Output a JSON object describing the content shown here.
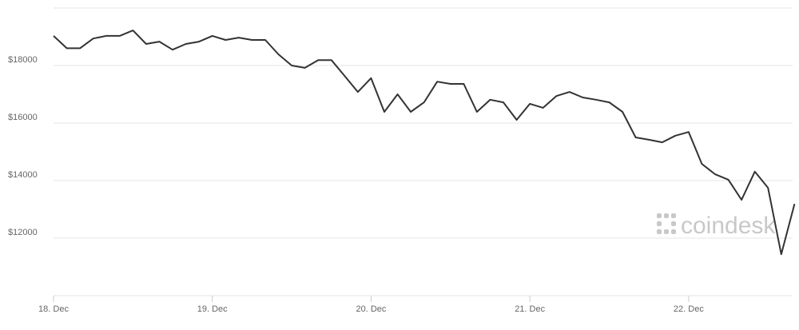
{
  "chart_data": {
    "type": "line",
    "categories": [
      "18. Dec",
      null,
      null,
      null,
      null,
      null,
      null,
      null,
      null,
      null,
      null,
      null,
      "19. Dec",
      null,
      null,
      null,
      null,
      null,
      null,
      null,
      null,
      null,
      null,
      null,
      "20. Dec",
      null,
      null,
      null,
      null,
      null,
      null,
      null,
      null,
      null,
      null,
      null,
      "21. Dec",
      null,
      null,
      null,
      null,
      null,
      null,
      null,
      null,
      null,
      null,
      null,
      "22. Dec",
      null,
      null,
      null,
      null,
      null,
      null,
      null,
      null
    ],
    "series": [
      {
        "color": "#333333",
        "values": [
          19030,
          18600,
          18600,
          18940,
          19030,
          19030,
          19220,
          18750,
          18830,
          18550,
          18750,
          18830,
          19030,
          18890,
          18970,
          18890,
          18890,
          18390,
          18000,
          17920,
          18190,
          18190,
          17640,
          17080,
          17560,
          16390,
          17000,
          16390,
          16720,
          17440,
          17360,
          17360,
          16390,
          16810,
          16720,
          16110,
          16670,
          16530,
          16940,
          17080,
          16890,
          16810,
          16720,
          16390,
          15500,
          15420,
          15330,
          15560,
          15690,
          14580,
          14220,
          14030,
          13330,
          14310,
          13750,
          11440,
          13190
        ]
      }
    ],
    "ylim": [
      10000,
      20000
    ],
    "yticks": [
      {
        "value": 12000,
        "label": "$12000"
      },
      {
        "value": 14000,
        "label": "$14000"
      },
      {
        "value": 16000,
        "label": "$16000"
      },
      {
        "value": 18000,
        "label": "$18000"
      }
    ],
    "grid": true,
    "watermark": "coindesk"
  }
}
